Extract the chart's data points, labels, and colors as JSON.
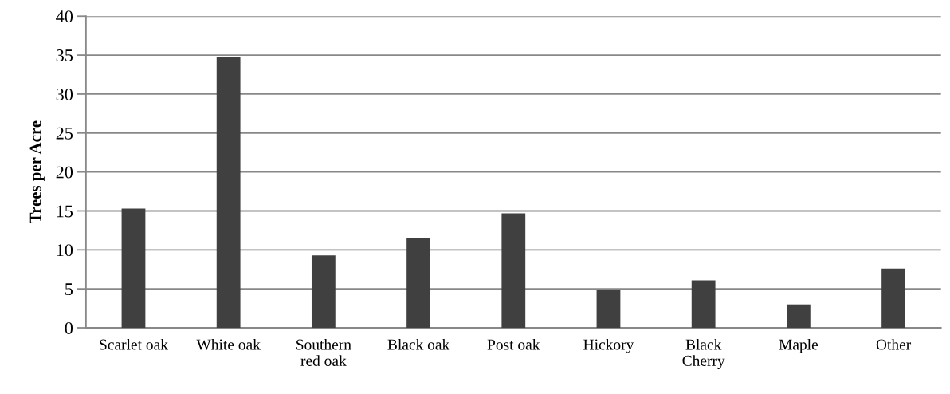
{
  "chart_data": {
    "type": "bar",
    "ylabel": "Trees per Acre",
    "categories": [
      "Scarlet oak",
      "White oak",
      "Southern\nred oak",
      "Black oak",
      "Post oak",
      "Hickory",
      "Black\nCherry",
      "Maple",
      "Other"
    ],
    "values": [
      15.3,
      34.7,
      9.3,
      11.5,
      14.7,
      4.8,
      6.1,
      3.0,
      7.6
    ],
    "color": "#404040",
    "ylim": [
      0,
      40
    ],
    "yticks": [
      0,
      5,
      10,
      15,
      20,
      25,
      30,
      35,
      40
    ],
    "grid": "y"
  }
}
